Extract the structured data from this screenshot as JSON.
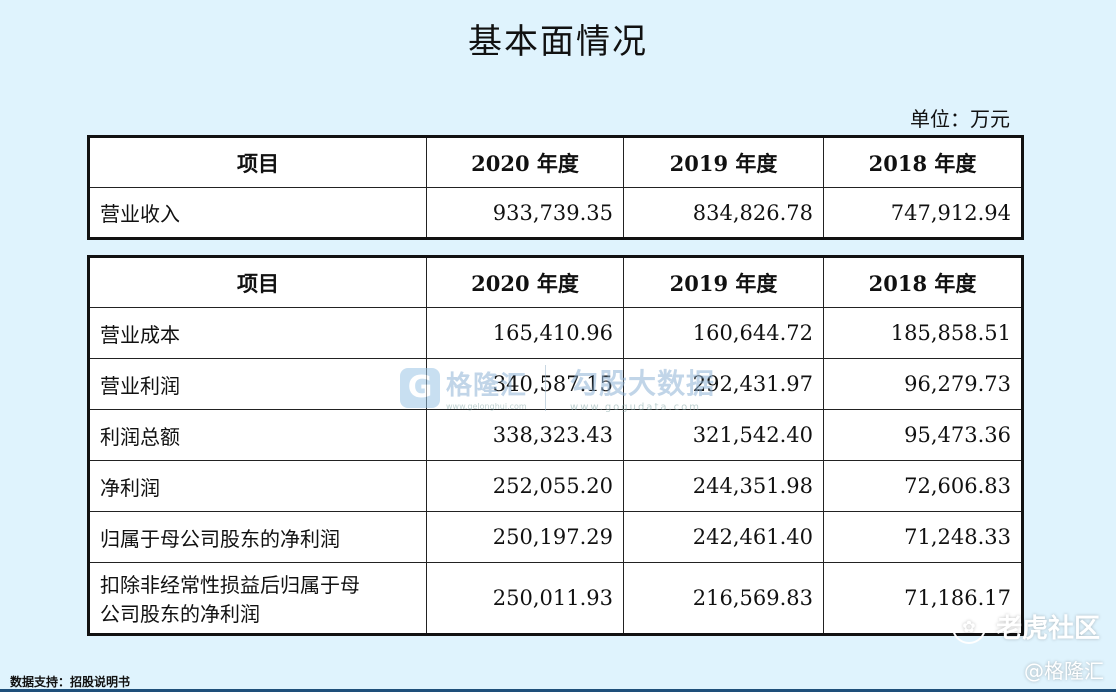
{
  "title": "基本面情况",
  "unit": "单位：万元",
  "table1": {
    "headers": [
      "项目",
      "2020 年度",
      "2019 年度",
      "2018 年度"
    ],
    "rows": [
      {
        "label": "营业收入",
        "v2020": "933,739.35",
        "v2019": "834,826.78",
        "v2018": "747,912.94"
      }
    ]
  },
  "table2": {
    "headers": [
      "项目",
      "2020 年度",
      "2019 年度",
      "2018 年度"
    ],
    "rows": [
      {
        "label": "营业成本",
        "v2020": "165,410.96",
        "v2019": "160,644.72",
        "v2018": "185,858.51"
      },
      {
        "label": "营业利润",
        "v2020": "340,587.15",
        "v2019": "292,431.97",
        "v2018": "96,279.73"
      },
      {
        "label": "利润总额",
        "v2020": "338,323.43",
        "v2019": "321,542.40",
        "v2018": "95,473.36"
      },
      {
        "label": "净利润",
        "v2020": "252,055.20",
        "v2019": "244,351.98",
        "v2018": "72,606.83"
      },
      {
        "label": "归属于母公司股东的净利润",
        "v2020": "250,197.29",
        "v2019": "242,461.40",
        "v2018": "71,248.33"
      },
      {
        "label_line1": "扣除非经常性损益后归属于母",
        "label_line2": "公司股东的净利润",
        "v2020": "250,011.93",
        "v2019": "216,569.83",
        "v2018": "71,186.17"
      }
    ]
  },
  "watermark": {
    "logo_letter": "G",
    "brand1": "格隆汇",
    "brand1_url": "www.gelonghui.com",
    "brand2": "勾股大数据",
    "brand2_url": "www.gogudata.com"
  },
  "footer": "数据支持：招股说明书",
  "corner": {
    "tiger_icon": "paw-icon",
    "tiger_text": "老虎社区",
    "gelonghui_text": "@格隆汇"
  }
}
